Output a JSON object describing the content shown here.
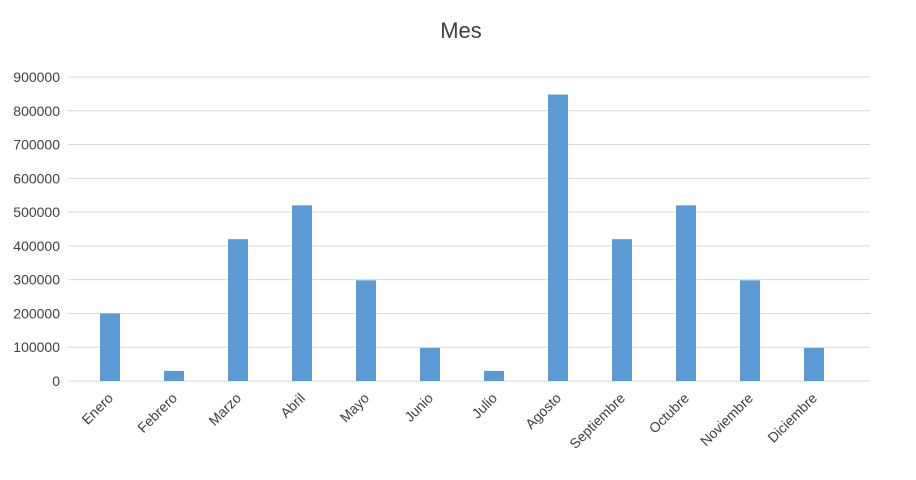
{
  "chart_data": {
    "type": "bar",
    "title": "Mes",
    "categories": [
      "Enero",
      "Febrero",
      "Marzo",
      "Abril",
      "Mayo",
      "Junio",
      "Julio",
      "Agosto",
      "Septiembre",
      "Octubre",
      "Noviembre",
      "Diciembre"
    ],
    "values": [
      200000,
      30000,
      420000,
      520000,
      298000,
      98000,
      30000,
      848000,
      420000,
      520000,
      298000,
      98000
    ],
    "xlabel": "",
    "ylabel": "",
    "ylim": [
      0,
      900000
    ],
    "yticks": [
      "0",
      "100000",
      "200000",
      "300000",
      "400000",
      "500000",
      "600000",
      "700000",
      "800000",
      "900000"
    ],
    "grid": true,
    "legend": "none",
    "colors": {
      "bar": "#5b9bd5",
      "grid": "#d9d9d9",
      "text": "#404040"
    }
  }
}
